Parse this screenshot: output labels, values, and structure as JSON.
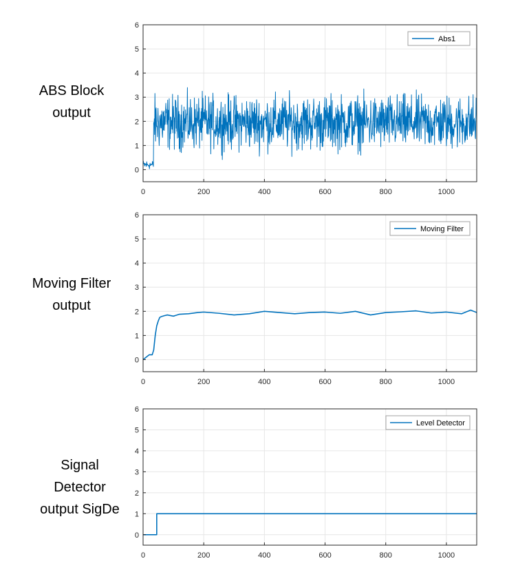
{
  "colors": {
    "line": "#0072BD",
    "grid": "#e6e6e6",
    "axis": "#262626",
    "legend_border": "#a0a0a0"
  },
  "panels": [
    {
      "side_label": "ABS Block\noutput"
    },
    {
      "side_label": "Moving Filter\noutput"
    },
    {
      "side_label": "Signal\nDetector\noutput SigDe"
    }
  ],
  "chart_data": [
    {
      "type": "line",
      "title": "",
      "xlabel": "",
      "ylabel": "",
      "xlim": [
        0,
        1100
      ],
      "ylim": [
        -0.5,
        6
      ],
      "xticks": [
        0,
        200,
        400,
        600,
        800,
        1000
      ],
      "yticks": [
        0,
        1,
        2,
        3,
        4,
        5,
        6
      ],
      "grid": true,
      "legend_position": "top-right",
      "series": [
        {
          "name": "Abs1",
          "noise": {
            "x_start": 0,
            "x_end": 1100,
            "n_points": 1100,
            "segments": [
              {
                "x_from": 0,
                "x_to": 35,
                "mean": 0.2,
                "spread": 0.15
              },
              {
                "x_from": 35,
                "x_to": 1100,
                "mean": 1.95,
                "spread": 0.9,
                "min": 0.1,
                "max": 4.0
              }
            ]
          }
        }
      ]
    },
    {
      "type": "line",
      "title": "",
      "xlabel": "",
      "ylabel": "",
      "xlim": [
        0,
        1100
      ],
      "ylim": [
        -0.5,
        6
      ],
      "xticks": [
        0,
        200,
        400,
        600,
        800,
        1000
      ],
      "yticks": [
        0,
        1,
        2,
        3,
        4,
        5,
        6
      ],
      "grid": true,
      "legend_position": "top-right",
      "series": [
        {
          "name": "Moving Filter",
          "x": [
            0,
            10,
            20,
            30,
            35,
            40,
            45,
            50,
            55,
            60,
            70,
            80,
            100,
            120,
            150,
            180,
            200,
            250,
            300,
            350,
            400,
            450,
            500,
            550,
            600,
            650,
            700,
            750,
            800,
            850,
            900,
            950,
            1000,
            1050,
            1080,
            1100
          ],
          "y": [
            0.0,
            0.1,
            0.2,
            0.2,
            0.4,
            1.0,
            1.4,
            1.6,
            1.75,
            1.78,
            1.82,
            1.85,
            1.8,
            1.88,
            1.9,
            1.95,
            1.97,
            1.92,
            1.85,
            1.9,
            2.0,
            1.95,
            1.9,
            1.95,
            1.97,
            1.92,
            2.0,
            1.85,
            1.95,
            1.98,
            2.02,
            1.93,
            1.97,
            1.9,
            2.05,
            1.95
          ]
        }
      ]
    },
    {
      "type": "line",
      "title": "",
      "xlabel": "",
      "ylabel": "",
      "xlim": [
        0,
        1100
      ],
      "ylim": [
        -0.5,
        6
      ],
      "xticks": [
        0,
        200,
        400,
        600,
        800,
        1000
      ],
      "yticks": [
        0,
        1,
        2,
        3,
        4,
        5,
        6
      ],
      "grid": true,
      "legend_position": "top-right",
      "series": [
        {
          "name": "Level Detector",
          "step": true,
          "x": [
            0,
            45,
            45,
            1100
          ],
          "y": [
            0,
            0,
            1,
            1
          ]
        }
      ]
    }
  ]
}
